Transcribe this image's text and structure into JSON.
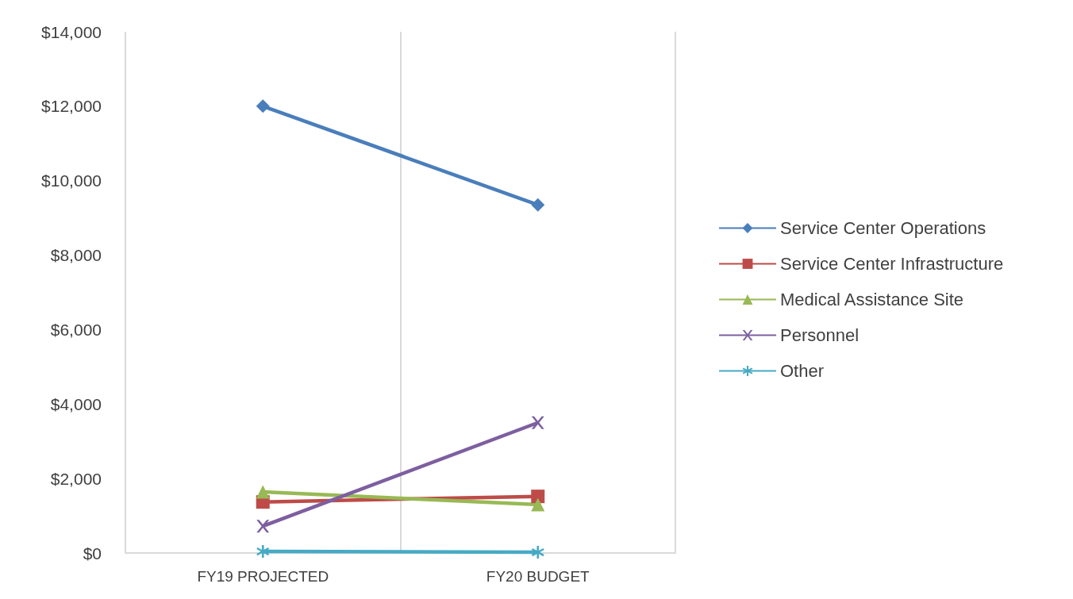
{
  "chart_data": {
    "type": "line",
    "categories": [
      "FY19 PROJECTED",
      "FY20 BUDGET"
    ],
    "series": [
      {
        "name": "Service Center Operations",
        "color": "#4a7ebb",
        "marker": "diamond",
        "values": [
          12000,
          9350
        ]
      },
      {
        "name": "Service Center Infrastructure",
        "color": "#be4b48",
        "marker": "square",
        "values": [
          1370,
          1520
        ]
      },
      {
        "name": "Medical Assistance Site",
        "color": "#98b954",
        "marker": "triangle",
        "values": [
          1640,
          1300
        ]
      },
      {
        "name": "Personnel",
        "color": "#7d5fa0",
        "marker": "cross",
        "values": [
          720,
          3500
        ]
      },
      {
        "name": "Other",
        "color": "#46aac5",
        "marker": "star",
        "values": [
          40,
          20
        ]
      }
    ],
    "ylim": [
      0,
      14000
    ],
    "yticks": [
      {
        "value": 0,
        "label": "$0"
      },
      {
        "value": 2000,
        "label": "$2,000"
      },
      {
        "value": 4000,
        "label": "$4,000"
      },
      {
        "value": 6000,
        "label": "$6,000"
      },
      {
        "value": 8000,
        "label": "$8,000"
      },
      {
        "value": 10000,
        "label": "$10,000"
      },
      {
        "value": 12000,
        "label": "$12,000"
      },
      {
        "value": 14000,
        "label": "$14,000"
      }
    ],
    "grid": "x",
    "legend": "right",
    "line_style": "solid"
  }
}
